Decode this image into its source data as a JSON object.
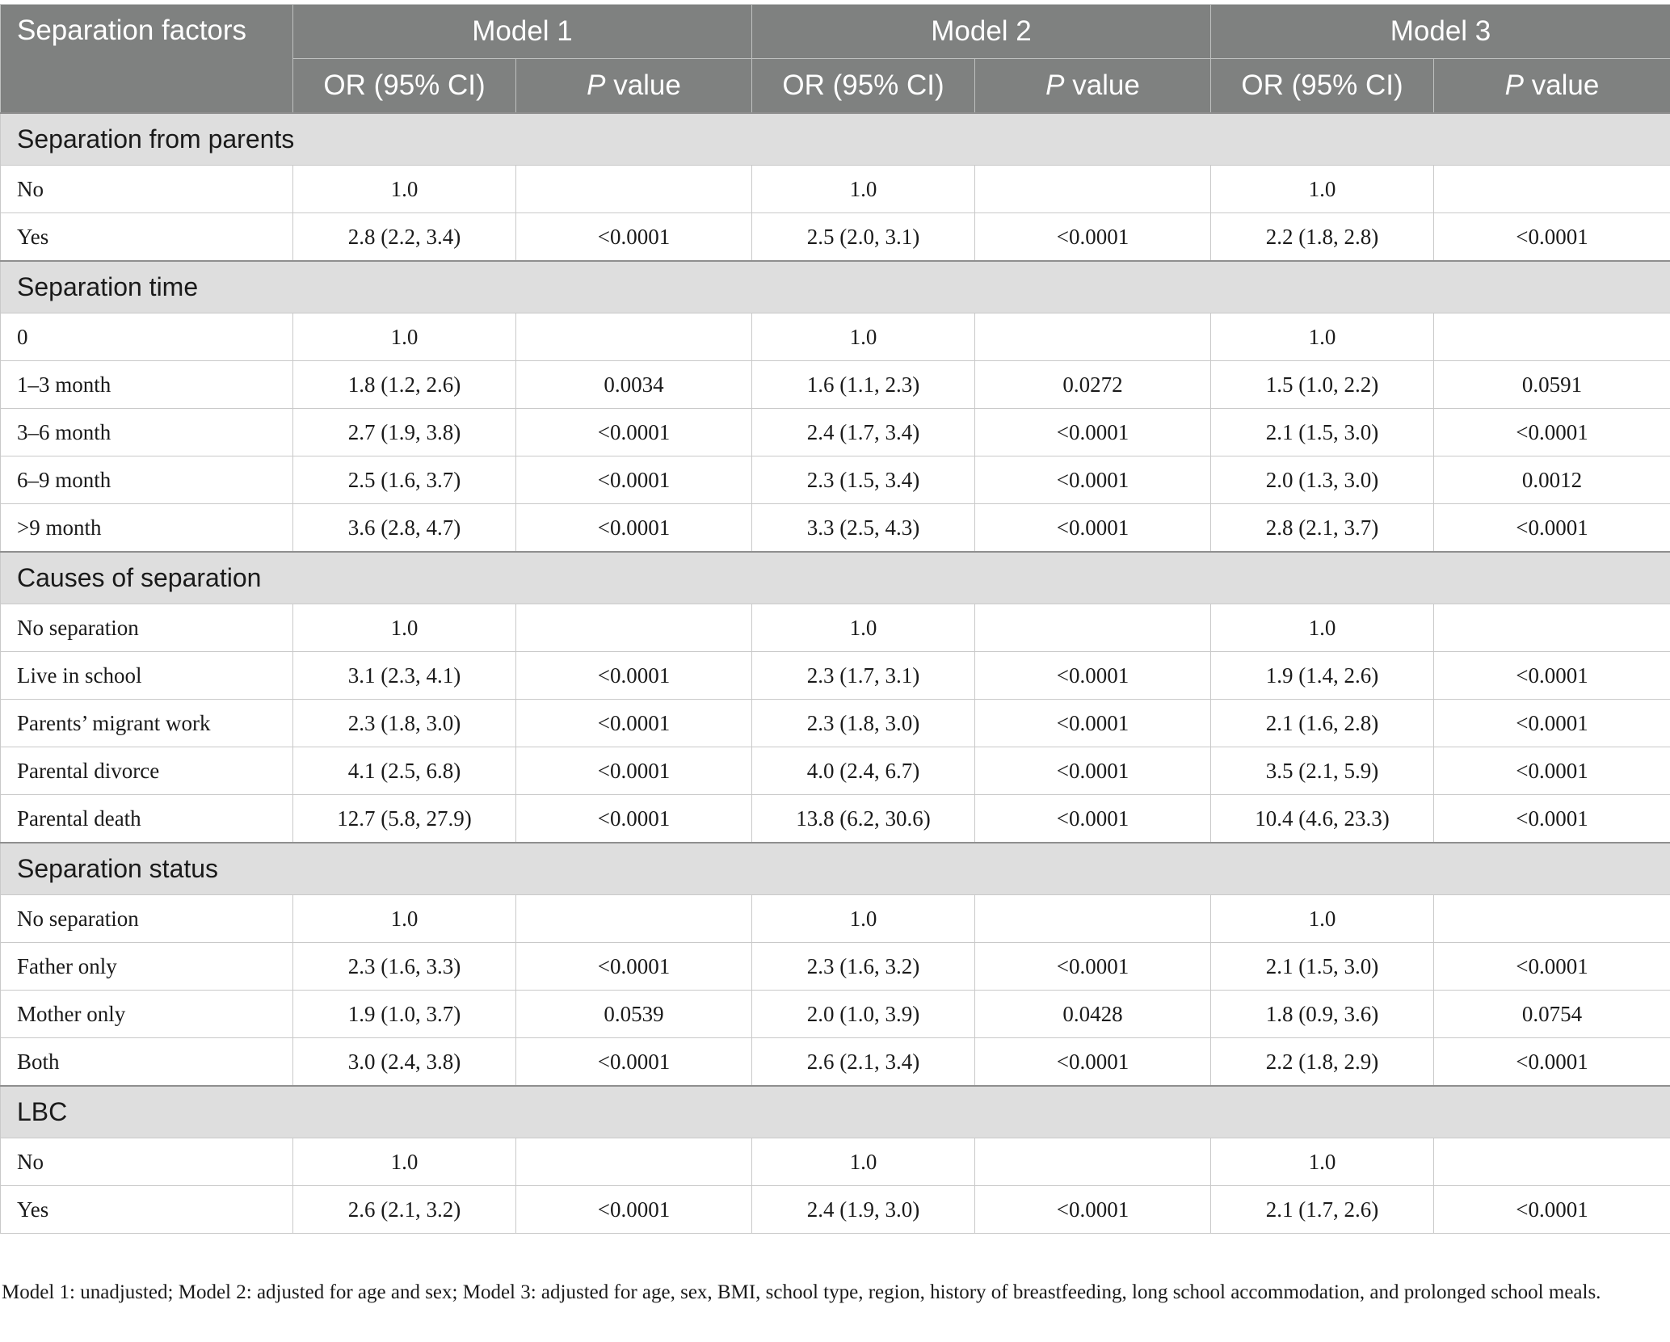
{
  "header": {
    "first_col": "Separation factors",
    "models": [
      "Model 1",
      "Model 2",
      "Model 3"
    ],
    "or_label": "OR (95% CI)",
    "p_italic": "P",
    "p_rest": " value"
  },
  "sections": [
    {
      "title": "Separation from parents",
      "rows": [
        {
          "label": "No",
          "cells": [
            "1.0",
            "",
            "1.0",
            "",
            "1.0",
            ""
          ]
        },
        {
          "label": "Yes",
          "cells": [
            "2.8 (2.2, 3.4)",
            "<0.0001",
            "2.5 (2.0, 3.1)",
            "<0.0001",
            "2.2 (1.8, 2.8)",
            "<0.0001"
          ]
        }
      ]
    },
    {
      "title": "Separation time",
      "rows": [
        {
          "label": "0",
          "cells": [
            "1.0",
            "",
            "1.0",
            "",
            "1.0",
            ""
          ]
        },
        {
          "label": "1–3 month",
          "cells": [
            "1.8 (1.2, 2.6)",
            "0.0034",
            "1.6 (1.1, 2.3)",
            "0.0272",
            "1.5 (1.0, 2.2)",
            "0.0591"
          ]
        },
        {
          "label": "3–6 month",
          "cells": [
            "2.7 (1.9, 3.8)",
            "<0.0001",
            "2.4 (1.7, 3.4)",
            "<0.0001",
            "2.1 (1.5, 3.0)",
            "<0.0001"
          ]
        },
        {
          "label": "6–9 month",
          "cells": [
            "2.5 (1.6, 3.7)",
            "<0.0001",
            "2.3 (1.5, 3.4)",
            "<0.0001",
            "2.0 (1.3, 3.0)",
            "0.0012"
          ]
        },
        {
          "label": ">9 month",
          "cells": [
            "3.6 (2.8, 4.7)",
            "<0.0001",
            "3.3 (2.5, 4.3)",
            "<0.0001",
            "2.8 (2.1, 3.7)",
            "<0.0001"
          ]
        }
      ]
    },
    {
      "title": "Causes of separation",
      "rows": [
        {
          "label": "No separation",
          "cells": [
            "1.0",
            "",
            "1.0",
            "",
            "1.0",
            ""
          ]
        },
        {
          "label": "Live in school",
          "cells": [
            "3.1 (2.3, 4.1)",
            "<0.0001",
            "2.3 (1.7, 3.1)",
            "<0.0001",
            "1.9 (1.4, 2.6)",
            "<0.0001"
          ]
        },
        {
          "label": "Parents’ migrant work",
          "cells": [
            "2.3 (1.8, 3.0)",
            "<0.0001",
            "2.3 (1.8, 3.0)",
            "<0.0001",
            "2.1 (1.6, 2.8)",
            "<0.0001"
          ]
        },
        {
          "label": "Parental divorce",
          "cells": [
            "4.1 (2.5, 6.8)",
            "<0.0001",
            "4.0 (2.4, 6.7)",
            "<0.0001",
            "3.5 (2.1, 5.9)",
            "<0.0001"
          ]
        },
        {
          "label": "Parental death",
          "cells": [
            "12.7 (5.8, 27.9)",
            "<0.0001",
            "13.8 (6.2, 30.6)",
            "<0.0001",
            "10.4 (4.6, 23.3)",
            "<0.0001"
          ]
        }
      ]
    },
    {
      "title": "Separation status",
      "rows": [
        {
          "label": "No separation",
          "cells": [
            "1.0",
            "",
            "1.0",
            "",
            "1.0",
            ""
          ]
        },
        {
          "label": "Father only",
          "cells": [
            "2.3 (1.6, 3.3)",
            "<0.0001",
            "2.3 (1.6, 3.2)",
            "<0.0001",
            "2.1 (1.5, 3.0)",
            "<0.0001"
          ]
        },
        {
          "label": "Mother only",
          "cells": [
            "1.9 (1.0, 3.7)",
            "0.0539",
            "2.0 (1.0, 3.9)",
            "0.0428",
            "1.8 (0.9, 3.6)",
            "0.0754"
          ]
        },
        {
          "label": "Both",
          "cells": [
            "3.0 (2.4, 3.8)",
            "<0.0001",
            "2.6 (2.1, 3.4)",
            "<0.0001",
            "2.2 (1.8, 2.9)",
            "<0.0001"
          ]
        }
      ]
    },
    {
      "title": "LBC",
      "rows": [
        {
          "label": "No",
          "cells": [
            "1.0",
            "",
            "1.0",
            "",
            "1.0",
            ""
          ]
        },
        {
          "label": "Yes",
          "cells": [
            "2.6 (2.1, 3.2)",
            "<0.0001",
            "2.4 (1.9, 3.0)",
            "<0.0001",
            "2.1 (1.7, 2.6)",
            "<0.0001"
          ]
        }
      ]
    }
  ],
  "footnote": "Model 1: unadjusted; Model 2: adjusted for age and sex; Model 3: adjusted for age, sex, BMI, school type, region, history of breastfeeding, long school accommodation, and prolonged school meals."
}
